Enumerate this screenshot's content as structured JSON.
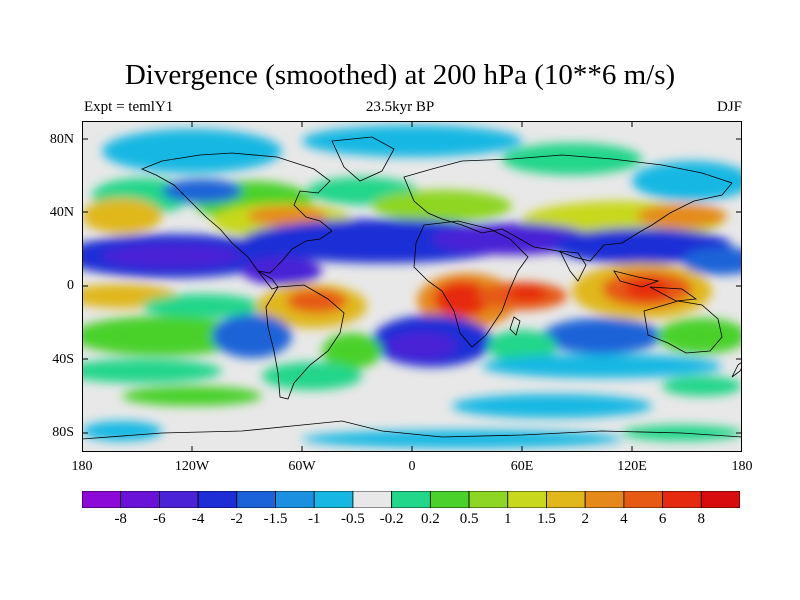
{
  "figure": {
    "title": "Divergence (smoothed) at 200 hPa (10**6 m/s)",
    "left_label": "Expt = temlY1",
    "center_label": "23.5kyr BP",
    "right_label": "DJF"
  },
  "axes": {
    "lat_ticks": [
      "80N",
      "40N",
      "0",
      "40S",
      "80S"
    ],
    "lon_ticks": [
      "180",
      "120W",
      "60W",
      "0",
      "60E",
      "120E",
      "180"
    ]
  },
  "colorbar": {
    "labels": [
      "-8",
      "-6",
      "-4",
      "-2",
      "-1.5",
      "-1",
      "-0.5",
      "-0.2",
      "0.2",
      "0.5",
      "1",
      "1.5",
      "2",
      "4",
      "6",
      "8"
    ],
    "colors": [
      "#8b0ad8",
      "#6a12d8",
      "#4a23d6",
      "#1e2ed6",
      "#1b63d8",
      "#1b8fe0",
      "#16b8e3",
      "#e8e8e8",
      "#22d68a",
      "#4ad12c",
      "#8ed624",
      "#c8d81c",
      "#e0b81c",
      "#e58a1a",
      "#e65a14",
      "#e62a10",
      "#d80c0c"
    ]
  }
}
